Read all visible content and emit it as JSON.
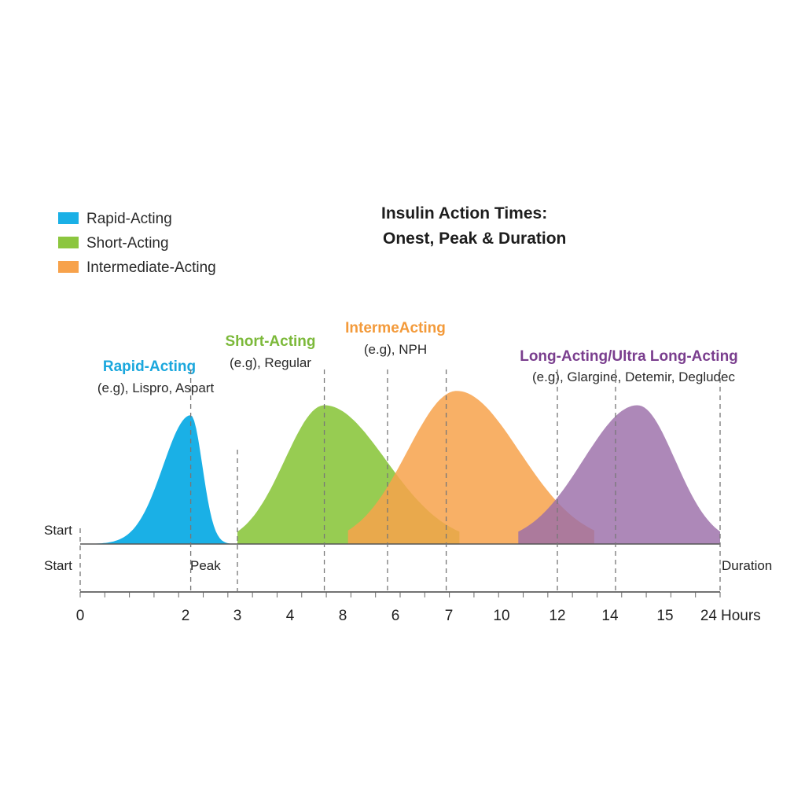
{
  "chart_data": {
    "type": "area",
    "title": [
      "Insulin Action Times:",
      "Onest, Peak & Duration"
    ],
    "x_tick_labels": [
      "0",
      "2",
      "3",
      "4",
      "8",
      "6",
      "7",
      "10",
      "12",
      "14",
      "15",
      "24"
    ],
    "x_unit_label": "Hours",
    "axis_markers": {
      "start_upper": "Start",
      "start_lower": "Start",
      "peak": "Peak",
      "duration": "Duration"
    },
    "legend": [
      {
        "label": "Rapid-Acting",
        "color": "#1ab0e6"
      },
      {
        "label": "Short-Acting",
        "color": "#8cc63f"
      },
      {
        "label": "Intermediate-Acting",
        "color": "#f7a24b"
      }
    ],
    "series": [
      {
        "name": "Rapid-Acting",
        "example": "(e.g), Lispro, Aspart",
        "color": "#1ab0e6",
        "title_color": "#1aa7dd",
        "onset_tick": 0,
        "peak_tick": 1.1,
        "end_tick": 2,
        "intensity": 0.9
      },
      {
        "name": "Short-Acting",
        "example": "(e.g), Regular",
        "color": "#8cc63f",
        "title_color": "#7cb93a",
        "onset_tick": 2,
        "peak_tick": 3.65,
        "end_tick": 6.2,
        "intensity": 0.97
      },
      {
        "name": "IntermeActing",
        "example": "(e.g), NPH",
        "color": "#f7a24b",
        "title_color": "#f39a3a",
        "onset_tick": 4.1,
        "peak_tick": 6.15,
        "end_tick": 8.7,
        "intensity": 1.07
      },
      {
        "name": "Long-Acting/Ultra Long-Acting",
        "example": "(e.g), Glargine, Detemir, Degludec",
        "color": "#9b6ea8",
        "title_color": "#7a3e8e",
        "onset_tick": 7.3,
        "peak_tick": 9.5,
        "end_tick": 11,
        "intensity": 0.97
      }
    ],
    "reference_lines_at_ticks": [
      0,
      1.1,
      2,
      3.65,
      4.85,
      5.95,
      8,
      9.1,
      11
    ],
    "grid": false
  }
}
